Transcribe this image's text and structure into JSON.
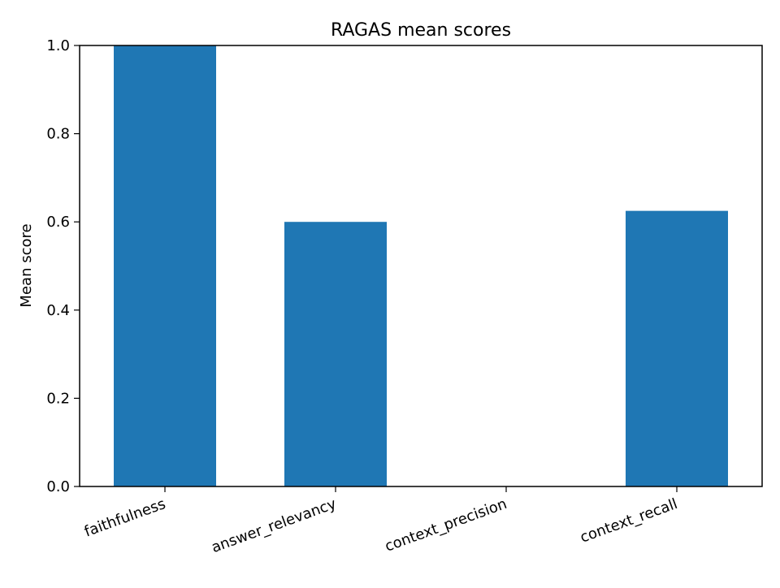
{
  "chart_data": {
    "type": "bar",
    "title": "RAGAS mean scores",
    "xlabel": "",
    "ylabel": "Mean score",
    "categories": [
      "faithfulness",
      "answer_relevancy",
      "context_precision",
      "context_recall"
    ],
    "values": [
      1.0,
      0.6,
      0.0,
      0.625
    ],
    "ylim": [
      0,
      1
    ],
    "yticks": [
      0.0,
      0.2,
      0.4,
      0.6,
      0.8,
      1.0
    ],
    "ytick_labels": [
      "0.0",
      "0.2",
      "0.4",
      "0.6",
      "0.8",
      "1.0"
    ],
    "grid": false,
    "legend": "none",
    "colors": {
      "bar": "#1f77b4",
      "axis": "#000000",
      "background": "#ffffff"
    }
  }
}
